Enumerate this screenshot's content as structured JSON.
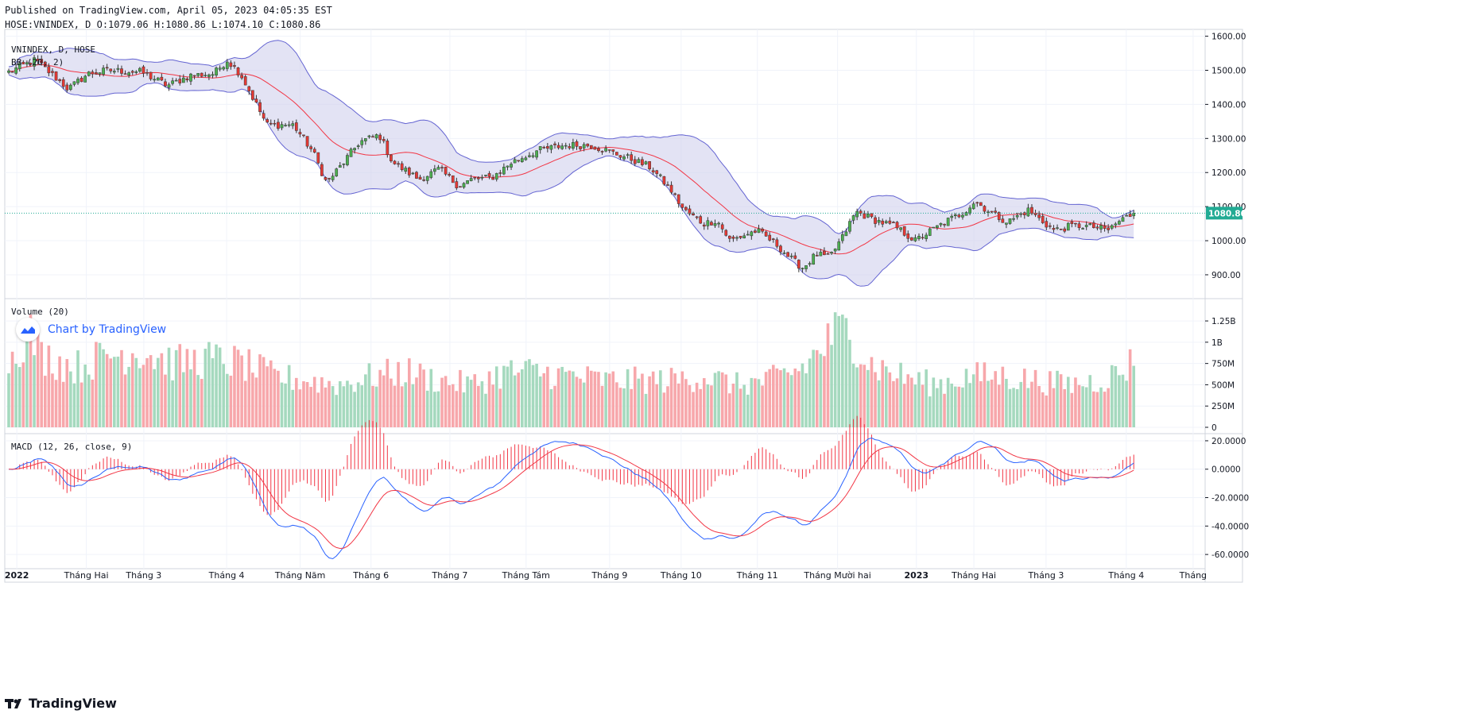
{
  "header": {
    "published": "Published on TradingView.com, April 05, 2023 04:05:35 EST",
    "ohlc": "HOSE:VNINDEX, D O:1079.06 H:1080.86 L:1074.10 C:1080.86"
  },
  "brand": {
    "footer": "TradingView",
    "watermark": "Chart by TradingView"
  },
  "colors": {
    "up": "#26a69a",
    "down": "#ef5350",
    "up_body": "#4caf50",
    "down_body": "#e53935",
    "band": "#6464d2",
    "band_fill": "#d1d1ec",
    "basis": "#f23645",
    "vol_up": "#a5d9be",
    "vol_down": "#f7a7ab",
    "macd": "#2962ff",
    "signal": "#f23645",
    "last_price_bg": "#22ab94"
  },
  "chart_data": [
    {
      "type": "candlestick",
      "title": "VNINDEX, D, HOSE",
      "indicator_label": "BB (20, 2)",
      "ylim": [
        830,
        1620
      ],
      "y_ticks": [
        "1600.00",
        "1500.00",
        "1400.00",
        "1300.00",
        "1200.00",
        "1100.00",
        "1000.00",
        "900.00"
      ],
      "y_tick_values": [
        1600,
        1500,
        1400,
        1300,
        1200,
        1100,
        1000,
        900
      ],
      "last_price": "1080.86",
      "last_price_value": 1080.86,
      "x_ticks": [
        "2022",
        "Tháng Hai",
        "Tháng 3",
        "Tháng 4",
        "Tháng Năm",
        "Tháng 6",
        "Tháng 7",
        "Tháng Tám",
        "Tháng 9",
        "Tháng 10",
        "Tháng 11",
        "Tháng Mười hai",
        "2023",
        "Tháng Hai",
        "Tháng 3",
        "Tháng 4",
        "Tháng"
      ],
      "x_tick_bold": [
        true,
        false,
        false,
        false,
        false,
        false,
        false,
        false,
        false,
        false,
        false,
        false,
        true,
        false,
        false,
        false,
        false
      ],
      "bars_count": 310,
      "close_anchors": [
        [
          0,
          1495
        ],
        [
          8,
          1530
        ],
        [
          14,
          1480
        ],
        [
          18,
          1445
        ],
        [
          24,
          1490
        ],
        [
          30,
          1500
        ],
        [
          40,
          1495
        ],
        [
          48,
          1455
        ],
        [
          55,
          1485
        ],
        [
          62,
          1490
        ],
        [
          66,
          1530
        ],
        [
          70,
          1490
        ],
        [
          78,
          1340
        ],
        [
          86,
          1340
        ],
        [
          92,
          1260
        ],
        [
          96,
          1170
        ],
        [
          100,
          1215
        ],
        [
          106,
          1290
        ],
        [
          112,
          1310
        ],
        [
          116,
          1230
        ],
        [
          124,
          1180
        ],
        [
          130,
          1210
        ],
        [
          136,
          1160
        ],
        [
          140,
          1180
        ],
        [
          146,
          1185
        ],
        [
          152,
          1230
        ],
        [
          160,
          1265
        ],
        [
          168,
          1280
        ],
        [
          176,
          1280
        ],
        [
          182,
          1260
        ],
        [
          188,
          1240
        ],
        [
          194,
          1215
        ],
        [
          200,
          1150
        ],
        [
          204,
          1090
        ],
        [
          210,
          1050
        ],
        [
          214,
          1060
        ],
        [
          218,
          1000
        ],
        [
          226,
          1030
        ],
        [
          232,
          990
        ],
        [
          236,
          950
        ],
        [
          240,
          920
        ],
        [
          244,
          960
        ],
        [
          248,
          950
        ],
        [
          252,
          1010
        ],
        [
          256,
          1085
        ],
        [
          262,
          1060
        ],
        [
          268,
          1040
        ],
        [
          274,
          1000
        ],
        [
          278,
          1025
        ],
        [
          284,
          1060
        ],
        [
          288,
          1080
        ],
        [
          292,
          1115
        ],
        [
          298,
          1075
        ],
        [
          302,
          1055
        ],
        [
          308,
          1090
        ],
        [
          316,
          1030
        ],
        [
          322,
          1045
        ],
        [
          328,
          1040
        ],
        [
          332,
          1030
        ],
        [
          336,
          1060
        ],
        [
          340,
          1080.86
        ]
      ]
    },
    {
      "type": "bar",
      "title": "Volume (20)",
      "ylim": [
        0,
        1400000000
      ],
      "y_ticks": [
        "1.25B",
        "1B",
        "750M",
        "500M",
        "250M",
        "0"
      ],
      "y_tick_values": [
        1250000000,
        1000000000,
        750000000,
        500000000,
        250000000,
        0
      ],
      "volume_anchors": [
        [
          0,
          800000000
        ],
        [
          6,
          1150000000
        ],
        [
          10,
          850000000
        ],
        [
          20,
          700000000
        ],
        [
          30,
          850000000
        ],
        [
          40,
          900000000
        ],
        [
          50,
          750000000
        ],
        [
          60,
          800000000
        ],
        [
          70,
          750000000
        ],
        [
          80,
          600000000
        ],
        [
          90,
          550000000
        ],
        [
          100,
          500000000
        ],
        [
          110,
          600000000
        ],
        [
          120,
          650000000
        ],
        [
          130,
          550000000
        ],
        [
          140,
          500000000
        ],
        [
          150,
          650000000
        ],
        [
          160,
          650000000
        ],
        [
          170,
          600000000
        ],
        [
          180,
          550000000
        ],
        [
          190,
          550000000
        ],
        [
          200,
          550000000
        ],
        [
          210,
          600000000
        ],
        [
          220,
          500000000
        ],
        [
          230,
          550000000
        ],
        [
          240,
          700000000
        ],
        [
          245,
          900000000
        ],
        [
          250,
          1100000000
        ],
        [
          254,
          1150000000
        ],
        [
          260,
          750000000
        ],
        [
          270,
          600000000
        ],
        [
          280,
          500000000
        ],
        [
          290,
          600000000
        ],
        [
          300,
          600000000
        ],
        [
          310,
          550000000
        ],
        [
          320,
          500000000
        ],
        [
          330,
          550000000
        ],
        [
          336,
          650000000
        ],
        [
          340,
          780000000
        ]
      ]
    },
    {
      "type": "line",
      "title": "MACD (12, 26, close, 9)",
      "ylim": [
        -70,
        25
      ],
      "y_ticks": [
        "20.0000",
        "0.0000",
        "-20.0000",
        "-40.0000",
        "-60.0000"
      ],
      "y_tick_values": [
        20,
        0,
        -20,
        -40,
        -60
      ],
      "series": [
        {
          "name": "MACD"
        },
        {
          "name": "Signal"
        },
        {
          "name": "Histogram"
        }
      ]
    }
  ]
}
